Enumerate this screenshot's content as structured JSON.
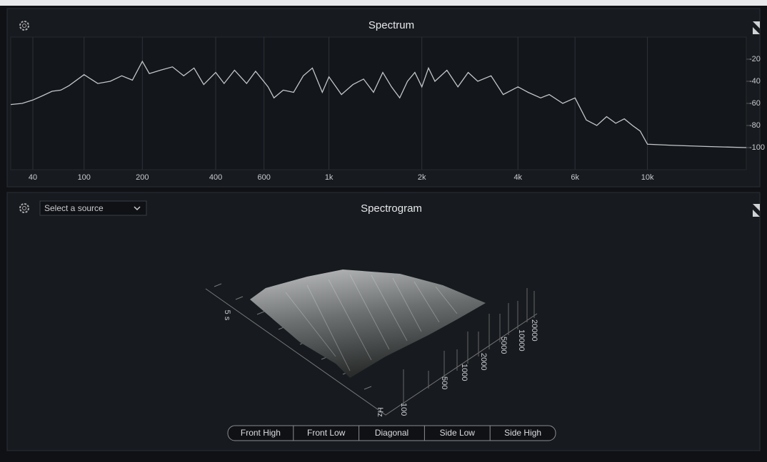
{
  "spectrum": {
    "type": "line",
    "title": "Spectrum",
    "color": "#c4c6c9",
    "grid": true,
    "x": [
      20,
      30,
      40,
      50,
      60,
      70,
      80,
      100,
      120,
      140,
      160,
      180,
      200,
      215,
      240,
      270,
      300,
      330,
      360,
      400,
      430,
      470,
      520,
      560,
      620,
      650,
      700,
      760,
      820,
      880,
      950,
      1000,
      1100,
      1200,
      1300,
      1400,
      1500,
      1600,
      1700,
      1800,
      1900,
      2000,
      2100,
      2200,
      2400,
      2600,
      2800,
      3000,
      3300,
      3600,
      4000,
      4300,
      4700,
      5000,
      5500,
      6000,
      6500,
      7000,
      7500,
      8000,
      8500,
      9000,
      9500,
      10000,
      12000,
      15000,
      20000
    ],
    "values": [
      -61,
      -60,
      -57,
      -53,
      -49,
      -48,
      -44,
      -34,
      -42,
      -40,
      -35,
      -39,
      -22,
      -33,
      -30,
      -27,
      -35,
      -28,
      -43,
      -32,
      -42,
      -30,
      -42,
      -31,
      -45,
      -55,
      -48,
      -50,
      -35,
      -28,
      -50,
      -36,
      -52,
      -43,
      -38,
      -50,
      -32,
      -45,
      -55,
      -40,
      -32,
      -45,
      -28,
      -40,
      -30,
      -45,
      -32,
      -40,
      -35,
      -52,
      -45,
      -50,
      -55,
      -52,
      -60,
      -55,
      -75,
      -80,
      -72,
      -78,
      -74,
      -80,
      -85,
      -97,
      -98,
      -99,
      -100
    ],
    "xlim": [
      20,
      20000
    ],
    "ylim": [
      -120,
      0
    ],
    "xticks": [
      40,
      100,
      200,
      400,
      600,
      {
        "value": 1000,
        "label": "1k"
      },
      {
        "value": 2000,
        "label": "2k"
      },
      {
        "value": 4000,
        "label": "4k"
      },
      {
        "value": 6000,
        "label": "6k"
      },
      {
        "value": 10000,
        "label": "10k"
      }
    ],
    "yticks": [
      -20,
      -40,
      -60,
      -80,
      -100
    ]
  },
  "spectrogram": {
    "title": "Spectrogram",
    "source_select": "Select a source",
    "time_label": "5 s",
    "hz_label": "Hz",
    "freq_labels": [
      "100",
      "500",
      "1000",
      "2000",
      "5000",
      "10000",
      "20000"
    ],
    "views": [
      "Front High",
      "Front Low",
      "Diagonal",
      "Side Low",
      "Side High"
    ]
  }
}
